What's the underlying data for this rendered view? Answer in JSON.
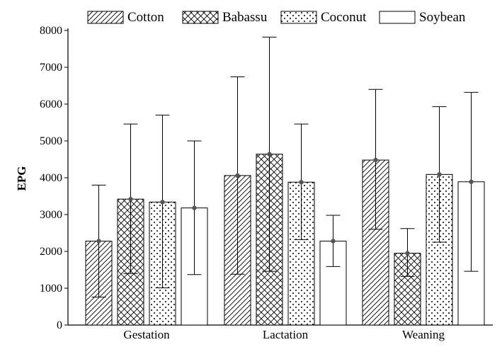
{
  "chart_data": {
    "type": "bar",
    "title": "",
    "xlabel": "",
    "ylabel": "EPG",
    "ylim": [
      0,
      8000
    ],
    "yticks": [
      0,
      1000,
      2000,
      3000,
      4000,
      5000,
      6000,
      7000,
      8000
    ],
    "categories": [
      "Gestation",
      "Lactation",
      "Weaning"
    ],
    "grid": false,
    "legend_position": "top",
    "series": [
      {
        "name": "Cotton",
        "pattern": "diagonal-hatch",
        "values": [
          2280,
          4060,
          4480
        ],
        "error_low": [
          760,
          1380,
          2600
        ],
        "error_high": [
          3800,
          6740,
          6400
        ]
      },
      {
        "name": "Babassu",
        "pattern": "crosshatch",
        "values": [
          3420,
          4640,
          1950
        ],
        "error_low": [
          1400,
          1460,
          1320
        ],
        "error_high": [
          5460,
          7820,
          2620
        ]
      },
      {
        "name": "Coconut",
        "pattern": "dots",
        "values": [
          3340,
          3880,
          4090
        ],
        "error_low": [
          1010,
          2320,
          2250
        ],
        "error_high": [
          5700,
          5460,
          5930
        ]
      },
      {
        "name": "Soybean",
        "pattern": "none",
        "values": [
          3180,
          2280,
          3890
        ],
        "error_low": [
          1370,
          1590,
          1460
        ],
        "error_high": [
          5000,
          2980,
          6320
        ]
      }
    ]
  }
}
